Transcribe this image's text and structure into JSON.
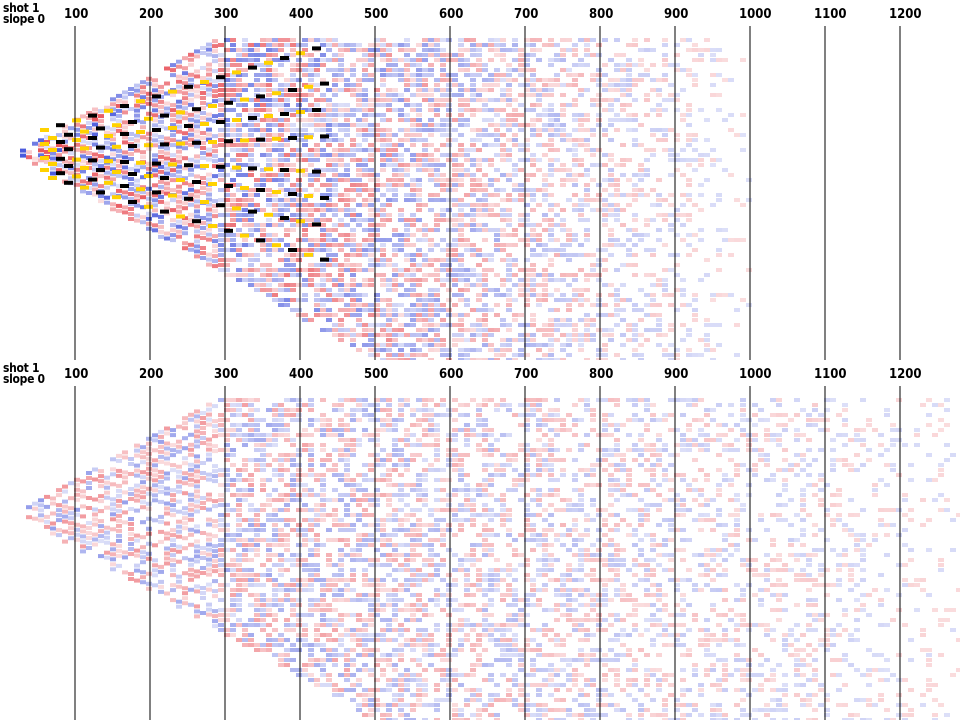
{
  "panels": [
    {
      "id": "top",
      "shot_label": "shot 1",
      "slope_label": "slope 0",
      "ticks": [
        "100",
        "200",
        "300",
        "400",
        "500",
        "600",
        "700",
        "800",
        "900",
        "1000",
        "1100",
        "1200"
      ]
    },
    {
      "id": "bottom",
      "shot_label": "shot 1",
      "slope_label": "slope 0",
      "ticks": [
        "100",
        "200",
        "300",
        "400",
        "500",
        "600",
        "700",
        "800",
        "900",
        "1000",
        "1100",
        "1200"
      ]
    }
  ],
  "colors": {
    "positive": "#e0141e",
    "negative": "#1428d2",
    "strong_positive": "#ffd200",
    "strong_negative": "#000000",
    "background": "#ffffff"
  }
}
